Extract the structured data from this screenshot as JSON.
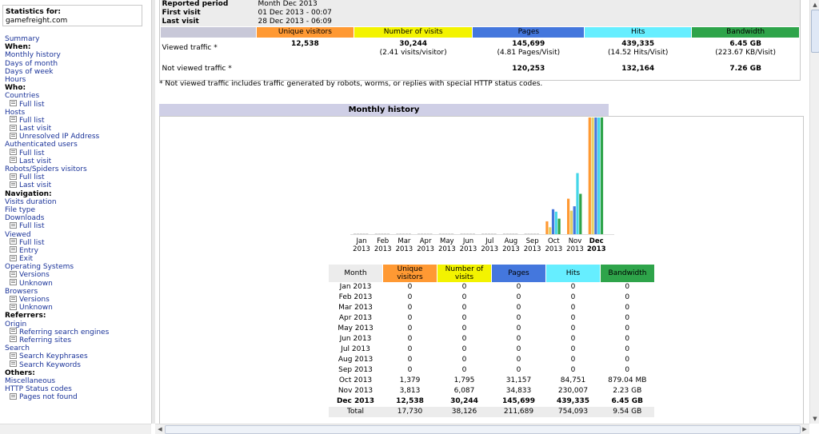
{
  "menu": {
    "stats_for_label": "Statistics for:",
    "site": "gamefreight.com",
    "items": [
      {
        "label": "Summary",
        "type": "link"
      },
      {
        "label": "When:",
        "type": "hdr"
      },
      {
        "label": "Monthly history",
        "type": "link"
      },
      {
        "label": "Days of month",
        "type": "link"
      },
      {
        "label": "Days of week",
        "type": "link"
      },
      {
        "label": "Hours",
        "type": "link"
      },
      {
        "label": "Who:",
        "type": "hdr"
      },
      {
        "label": "Countries",
        "type": "link"
      },
      {
        "label": "Full list",
        "type": "sub"
      },
      {
        "label": "Hosts",
        "type": "link"
      },
      {
        "label": "Full list",
        "type": "sub"
      },
      {
        "label": "Last visit",
        "type": "sub"
      },
      {
        "label": "Unresolved IP Address",
        "type": "sub"
      },
      {
        "label": "Authenticated users",
        "type": "link"
      },
      {
        "label": "Full list",
        "type": "sub"
      },
      {
        "label": "Last visit",
        "type": "sub"
      },
      {
        "label": "Robots/Spiders visitors",
        "type": "link"
      },
      {
        "label": "Full list",
        "type": "sub"
      },
      {
        "label": "Last visit",
        "type": "sub"
      },
      {
        "label": "Navigation:",
        "type": "hdr"
      },
      {
        "label": "Visits duration",
        "type": "link"
      },
      {
        "label": "File type",
        "type": "link"
      },
      {
        "label": "Downloads",
        "type": "link"
      },
      {
        "label": "Full list",
        "type": "sub"
      },
      {
        "label": "Viewed",
        "type": "link"
      },
      {
        "label": "Full list",
        "type": "sub"
      },
      {
        "label": "Entry",
        "type": "sub"
      },
      {
        "label": "Exit",
        "type": "sub"
      },
      {
        "label": "Operating Systems",
        "type": "link"
      },
      {
        "label": "Versions",
        "type": "sub"
      },
      {
        "label": "Unknown",
        "type": "sub"
      },
      {
        "label": "Browsers",
        "type": "link"
      },
      {
        "label": "Versions",
        "type": "sub"
      },
      {
        "label": "Unknown",
        "type": "sub"
      },
      {
        "label": "Referrers:",
        "type": "hdr"
      },
      {
        "label": "Origin",
        "type": "link"
      },
      {
        "label": "Referring search engines",
        "type": "sub"
      },
      {
        "label": "Referring sites",
        "type": "sub"
      },
      {
        "label": "Search",
        "type": "link"
      },
      {
        "label": "Search Keyphrases",
        "type": "sub"
      },
      {
        "label": "Search Keywords",
        "type": "sub"
      },
      {
        "label": "Others:",
        "type": "hdr"
      },
      {
        "label": "Miscellaneous",
        "type": "link"
      },
      {
        "label": "HTTP Status codes",
        "type": "link"
      },
      {
        "label": "Pages not found",
        "type": "sub"
      }
    ]
  },
  "summary": {
    "reported_label": "Reported period",
    "reported_value": "Month Dec 2013",
    "first_label": "First visit",
    "first_value": "01 Dec 2013 - 00:07",
    "last_label": "Last visit",
    "last_value": "28 Dec 2013 - 06:09",
    "headers": [
      "Unique visitors",
      "Number of visits",
      "Pages",
      "Hits",
      "Bandwidth"
    ],
    "viewed_label": "Viewed traffic *",
    "viewed": {
      "unique": "12,538",
      "visits": "30,244",
      "visits_sub": "(2.41 visits/visitor)",
      "pages": "145,699",
      "pages_sub": "(4.81 Pages/Visit)",
      "hits": "439,335",
      "hits_sub": "(14.52 Hits/Visit)",
      "bandwidth": "6.45 GB",
      "bandwidth_sub": "(223.67 KB/Visit)"
    },
    "not_viewed_label": "Not viewed traffic *",
    "not_viewed": {
      "pages": "120,253",
      "hits": "132,164",
      "bandwidth": "7.26 GB"
    },
    "note": "* Not viewed traffic includes traffic generated by robots, worms, or replies with special HTTP status codes."
  },
  "monthly": {
    "title": "Monthly history",
    "table_headers": [
      "Month",
      "Unique visitors",
      "Number of visits",
      "Pages",
      "Hits",
      "Bandwidth"
    ],
    "rows": [
      [
        "Jan 2013",
        "0",
        "0",
        "0",
        "0",
        "0"
      ],
      [
        "Feb 2013",
        "0",
        "0",
        "0",
        "0",
        "0"
      ],
      [
        "Mar 2013",
        "0",
        "0",
        "0",
        "0",
        "0"
      ],
      [
        "Apr 2013",
        "0",
        "0",
        "0",
        "0",
        "0"
      ],
      [
        "May 2013",
        "0",
        "0",
        "0",
        "0",
        "0"
      ],
      [
        "Jun 2013",
        "0",
        "0",
        "0",
        "0",
        "0"
      ],
      [
        "Jul 2013",
        "0",
        "0",
        "0",
        "0",
        "0"
      ],
      [
        "Aug 2013",
        "0",
        "0",
        "0",
        "0",
        "0"
      ],
      [
        "Sep 2013",
        "0",
        "0",
        "0",
        "0",
        "0"
      ],
      [
        "Oct 2013",
        "1,379",
        "1,795",
        "31,157",
        "84,751",
        "879.04 MB"
      ],
      [
        "Nov 2013",
        "3,813",
        "6,087",
        "34,833",
        "230,007",
        "2.23 GB"
      ],
      [
        "Dec 2013",
        "12,538",
        "30,244",
        "145,699",
        "439,335",
        "6.45 GB"
      ]
    ],
    "total": [
      "Total",
      "17,730",
      "38,126",
      "211,689",
      "754,093",
      "9.54 GB"
    ]
  },
  "chart_data": {
    "type": "bar",
    "categories": [
      "Jan 2013",
      "Feb 2013",
      "Mar 2013",
      "Apr 2013",
      "May 2013",
      "Jun 2013",
      "Jul 2013",
      "Aug 2013",
      "Sep 2013",
      "Oct 2013",
      "Nov 2013",
      "Dec 2013"
    ],
    "month_labels": [
      "Jan",
      "Feb",
      "Mar",
      "Apr",
      "May",
      "Jun",
      "Jul",
      "Aug",
      "Sep",
      "Oct",
      "Nov",
      "Dec"
    ],
    "year_labels": [
      "2013",
      "2013",
      "2013",
      "2013",
      "2013",
      "2013",
      "2013",
      "2013",
      "2013",
      "2013",
      "2013",
      "2013"
    ],
    "series": [
      {
        "name": "Unique visitors",
        "values": [
          0,
          0,
          0,
          0,
          0,
          0,
          0,
          0,
          0,
          1379,
          3813,
          12538
        ],
        "color": "#ff9933"
      },
      {
        "name": "Number of visits",
        "values": [
          0,
          0,
          0,
          0,
          0,
          0,
          0,
          0,
          0,
          1795,
          6087,
          30244
        ],
        "color": "#e5d166"
      },
      {
        "name": "Pages",
        "values": [
          0,
          0,
          0,
          0,
          0,
          0,
          0,
          0,
          0,
          31157,
          34833,
          145699
        ],
        "color": "#4477dd"
      },
      {
        "name": "Hits",
        "values": [
          0,
          0,
          0,
          0,
          0,
          0,
          0,
          0,
          0,
          84751,
          230007,
          439335
        ],
        "color": "#44d6e8"
      },
      {
        "name": "Bandwidth",
        "values": [
          0,
          0,
          0,
          0,
          0,
          0,
          0,
          0,
          0,
          879.04,
          2283.5,
          6604.8
        ],
        "color": "#2ea44a"
      }
    ],
    "bold_category": "Dec 2013"
  }
}
